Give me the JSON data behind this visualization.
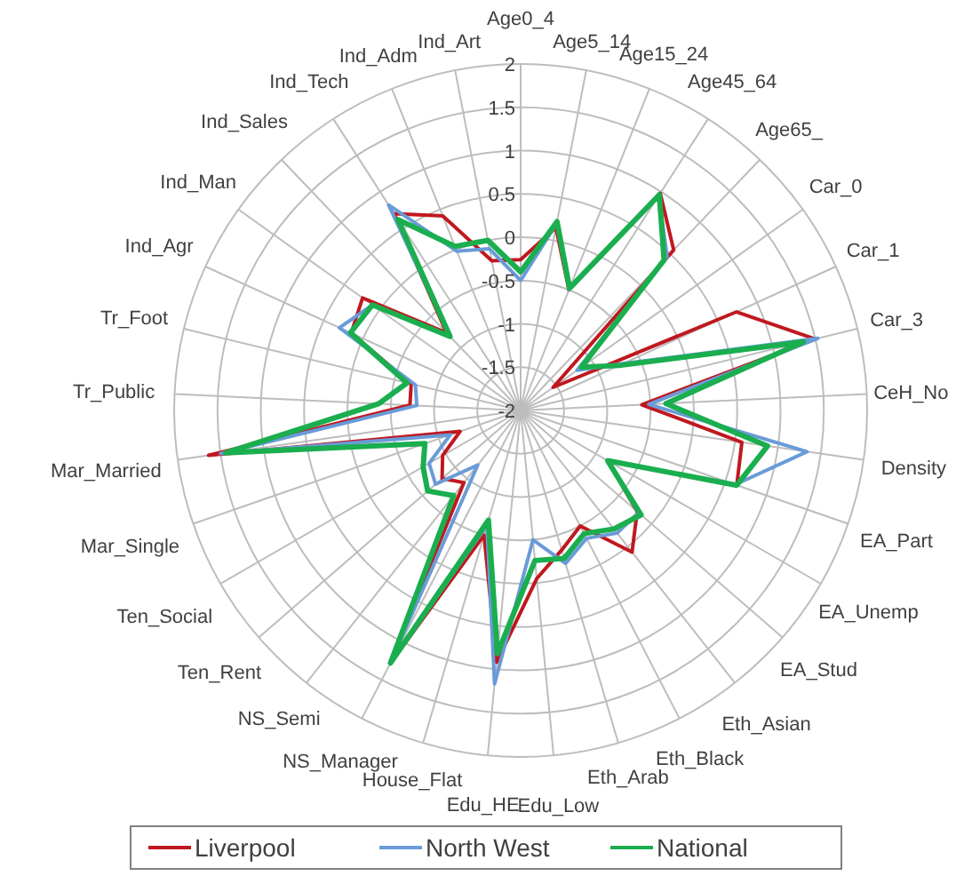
{
  "chart_data": {
    "type": "radar",
    "categories": [
      "Age0_4",
      "Age5_14",
      "Age15_24",
      "Age45_64",
      "Age65_",
      "Car_0",
      "Car_1",
      "Car_3",
      "CeH_No",
      "Density",
      "EA_Part",
      "EA_Unemp",
      "EA_Stud",
      "Eth_Asian",
      "Eth_Black",
      "Eth_Arab",
      "Edu_Low",
      "Edu_HE",
      "House_Flat",
      "NS_Manager",
      "NS_Semi",
      "Ten_Rent",
      "Ten_Social",
      "Mar_Single",
      "Mar_Married",
      "Tr_Public",
      "Tr_Foot",
      "Ind_Agr",
      "Ind_Man",
      "Ind_Sales",
      "Ind_Tech",
      "Ind_Adm",
      "Ind_Art"
    ],
    "series": [
      {
        "name": "Liverpool",
        "color": "#c0181f",
        "values": [
          -0.26,
          0.15,
          -0.5,
          0.98,
          0.56,
          -1.54,
          0.74,
          1.5,
          -0.6,
          0.58,
          0.64,
          -0.84,
          -0.22,
          0.08,
          -0.5,
          -0.32,
          -0.05,
          0.92,
          -0.5,
          1.28,
          -0.94,
          -0.8,
          -0.96,
          -1.26,
          1.64,
          -0.72,
          -0.7,
          0.15,
          0.24,
          -0.76,
          0.7,
          0.42,
          -0.24
        ]
      },
      {
        "name": "North West",
        "color": "#6a9bd8",
        "values": [
          -0.5,
          0.2,
          -0.5,
          0.95,
          0.45,
          -1.2,
          -0.7,
          1.53,
          -0.52,
          1.34,
          0.62,
          -0.84,
          -0.2,
          -0.2,
          -0.34,
          -0.16,
          -0.5,
          1.17,
          -0.62,
          1.28,
          -1.2,
          -0.7,
          -0.78,
          -1.14,
          1.5,
          -0.8,
          -0.75,
          0.3,
          0.1,
          -0.82,
          0.82,
          -0.02,
          -0.1
        ]
      },
      {
        "name": "National",
        "color": "#1aae4f",
        "values": [
          -0.4,
          0.22,
          -0.48,
          0.96,
          0.4,
          -1.14,
          -0.75,
          1.36,
          -0.32,
          0.88,
          0.64,
          -0.84,
          -0.16,
          -0.26,
          -0.4,
          -0.22,
          -0.26,
          0.82,
          -0.68,
          1.28,
          -0.75,
          -0.58,
          -0.7,
          -0.83,
          1.44,
          -0.36,
          -0.65,
          0.16,
          0.1,
          -0.82,
          0.62,
          0.04,
          0
        ]
      }
    ],
    "ylim": [
      -2,
      2
    ],
    "yticks": [
      -2,
      -1.5,
      -1,
      -0.5,
      0,
      0.5,
      1,
      1.5,
      2
    ],
    "grid": true,
    "legend": "bottom"
  }
}
